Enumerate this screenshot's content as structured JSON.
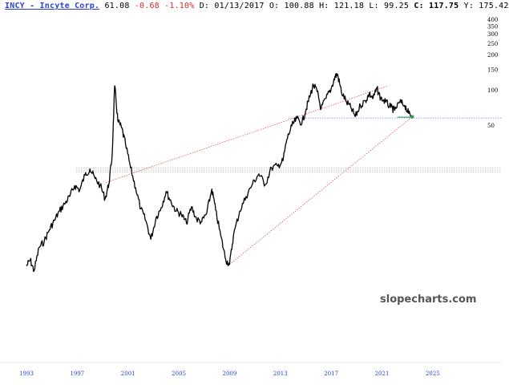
{
  "header": {
    "title": "INCY - Incyte Corp.",
    "price": "61.08",
    "change": "-0.68",
    "change_pct": "-1.10%",
    "date_label": "D:",
    "date": "01/13/2017",
    "open_label": "O:",
    "open": "100.88",
    "high_label": "H:",
    "high": "121.18",
    "low_label": "L:",
    "low": "99.25",
    "close_label": "C:",
    "close": "117.75",
    "y_label": "Y:",
    "y_value": "175.42"
  },
  "watermark": "slopecharts.com",
  "colors": {
    "title": "#2a3fd6",
    "negative": "#d62a2a",
    "price_line": "#000000",
    "trend_line": "#e04040",
    "support_line": "#4a5cf0",
    "horizontal_lines": "#9a9a9a",
    "recent_segment": "#2fa84f"
  },
  "chart_data": {
    "type": "line",
    "y_scale": "log",
    "y_ticks": [
      50,
      100,
      150,
      200,
      250,
      300,
      350,
      400
    ],
    "x_ticks": [
      "1993",
      "1997",
      "2001",
      "2005",
      "2009",
      "2013",
      "2017",
      "2021",
      "2025"
    ],
    "series": [
      {
        "points": [
          [
            1993.0,
            3.2
          ],
          [
            1993.3,
            3.6
          ],
          [
            1993.6,
            2.9
          ],
          [
            1994.0,
            4.6
          ],
          [
            1994.4,
            5.2
          ],
          [
            1994.8,
            6.5
          ],
          [
            1995.2,
            7.8
          ],
          [
            1995.6,
            9.4
          ],
          [
            1996.0,
            10.8
          ],
          [
            1996.4,
            12.5
          ],
          [
            1996.8,
            15.5
          ],
          [
            1997.2,
            14.2
          ],
          [
            1997.6,
            19.0
          ],
          [
            1998.0,
            21.5
          ],
          [
            1998.4,
            17.8
          ],
          [
            1998.8,
            15.6
          ],
          [
            1999.2,
            12.0
          ],
          [
            1999.5,
            16.2
          ],
          [
            1999.75,
            28.0
          ],
          [
            1999.95,
            110.0
          ],
          [
            2000.2,
            55.0
          ],
          [
            2000.5,
            48.0
          ],
          [
            2000.8,
            35.0
          ],
          [
            2001.2,
            22.0
          ],
          [
            2001.6,
            14.8
          ],
          [
            2002.0,
            9.8
          ],
          [
            2002.4,
            7.8
          ],
          [
            2002.8,
            5.4
          ],
          [
            2003.2,
            8.2
          ],
          [
            2003.6,
            10.0
          ],
          [
            2004.0,
            13.8
          ],
          [
            2004.4,
            11.2
          ],
          [
            2004.8,
            9.4
          ],
          [
            2005.2,
            8.8
          ],
          [
            2005.6,
            7.4
          ],
          [
            2006.0,
            10.2
          ],
          [
            2006.4,
            8.0
          ],
          [
            2006.8,
            7.6
          ],
          [
            2007.2,
            9.0
          ],
          [
            2007.6,
            14.5
          ],
          [
            2007.9,
            9.6
          ],
          [
            2008.3,
            5.8
          ],
          [
            2008.7,
            3.6
          ],
          [
            2009.0,
            3.3
          ],
          [
            2009.3,
            5.8
          ],
          [
            2009.8,
            9.4
          ],
          [
            2010.3,
            12.5
          ],
          [
            2010.8,
            16.0
          ],
          [
            2011.3,
            19.5
          ],
          [
            2011.8,
            15.8
          ],
          [
            2012.3,
            22.0
          ],
          [
            2012.8,
            22.8
          ],
          [
            2013.2,
            25.2
          ],
          [
            2013.5,
            38.0
          ],
          [
            2013.9,
            50.0
          ],
          [
            2014.3,
            58.0
          ],
          [
            2014.7,
            53.0
          ],
          [
            2015.0,
            68.0
          ],
          [
            2015.3,
            88.0
          ],
          [
            2015.6,
            112.0
          ],
          [
            2015.9,
            98.0
          ],
          [
            2016.2,
            70.0
          ],
          [
            2016.6,
            86.0
          ],
          [
            2017.0,
            104.0
          ],
          [
            2017.3,
            132.0
          ],
          [
            2017.5,
            138.0
          ],
          [
            2017.8,
            98.0
          ],
          [
            2018.2,
            80.0
          ],
          [
            2018.6,
            70.0
          ],
          [
            2018.9,
            60.0
          ],
          [
            2019.3,
            75.0
          ],
          [
            2019.7,
            82.0
          ],
          [
            2020.0,
            94.0
          ],
          [
            2020.3,
            86.0
          ],
          [
            2020.6,
            104.0
          ],
          [
            2020.9,
            86.0
          ],
          [
            2021.3,
            80.0
          ],
          [
            2021.7,
            72.0
          ],
          [
            2022.0,
            68.0
          ],
          [
            2022.4,
            80.0
          ],
          [
            2022.8,
            75.0
          ],
          [
            2023.1,
            64.0
          ],
          [
            2023.4,
            60.0
          ]
        ]
      }
    ],
    "trend_lines": [
      {
        "from": [
          1999.25,
          16.5
        ],
        "to": [
          2021.5,
          110.0
        ]
      },
      {
        "from": [
          2009.0,
          3.3
        ],
        "to": [
          2023.4,
          60.0
        ]
      }
    ],
    "support_level": 58.5,
    "horizontal_levels": [
      22.0,
      21.0,
      20.3
    ]
  }
}
